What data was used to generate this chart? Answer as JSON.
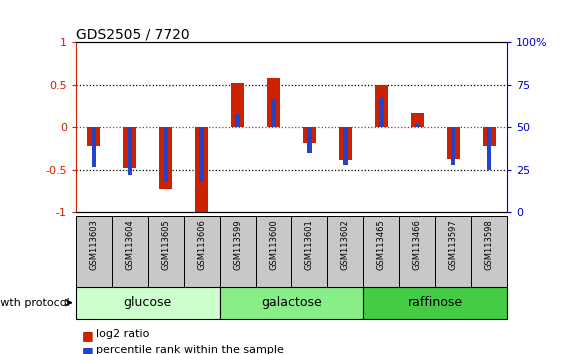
{
  "title": "GDS2505 / 7720",
  "samples": [
    "GSM113603",
    "GSM113604",
    "GSM113605",
    "GSM113606",
    "GSM113599",
    "GSM113600",
    "GSM113601",
    "GSM113602",
    "GSM113465",
    "GSM113466",
    "GSM113597",
    "GSM113598"
  ],
  "log2_ratio": [
    -0.22,
    -0.48,
    -0.72,
    -1.02,
    0.52,
    0.58,
    -0.18,
    -0.38,
    0.5,
    0.17,
    -0.37,
    -0.22
  ],
  "percentile_rank": [
    27,
    22,
    18,
    18,
    58,
    67,
    35,
    28,
    68,
    52,
    28,
    25
  ],
  "groups": [
    {
      "name": "glucose",
      "start": 0,
      "end": 4,
      "color": "#ccffcc"
    },
    {
      "name": "galactose",
      "start": 4,
      "end": 8,
      "color": "#88ee88"
    },
    {
      "name": "raffinose",
      "start": 8,
      "end": 12,
      "color": "#44cc44"
    }
  ],
  "bar_width": 0.35,
  "percentile_bar_width": 0.12,
  "ylim": [
    -1.0,
    1.0
  ],
  "y2lim": [
    0,
    100
  ],
  "yticks": [
    -1,
    -0.5,
    0,
    0.5,
    1
  ],
  "y2ticks": [
    0,
    25,
    50,
    75,
    100
  ],
  "hlines": [
    0.5,
    0,
    -0.5
  ],
  "bar_color": "#cc2200",
  "percentile_color": "#2244cc",
  "tick_label_color_left": "#cc2200",
  "tick_label_color_right": "#0000cc",
  "label_log2": "log2 ratio",
  "label_pct": "percentile rank within the sample",
  "growth_protocol_label": "growth protocol",
  "cell_bg": "#c8c8c8",
  "title_fontsize": 10,
  "ytick_fontsize": 8,
  "sample_fontsize": 6,
  "group_fontsize": 9,
  "legend_fontsize": 8
}
